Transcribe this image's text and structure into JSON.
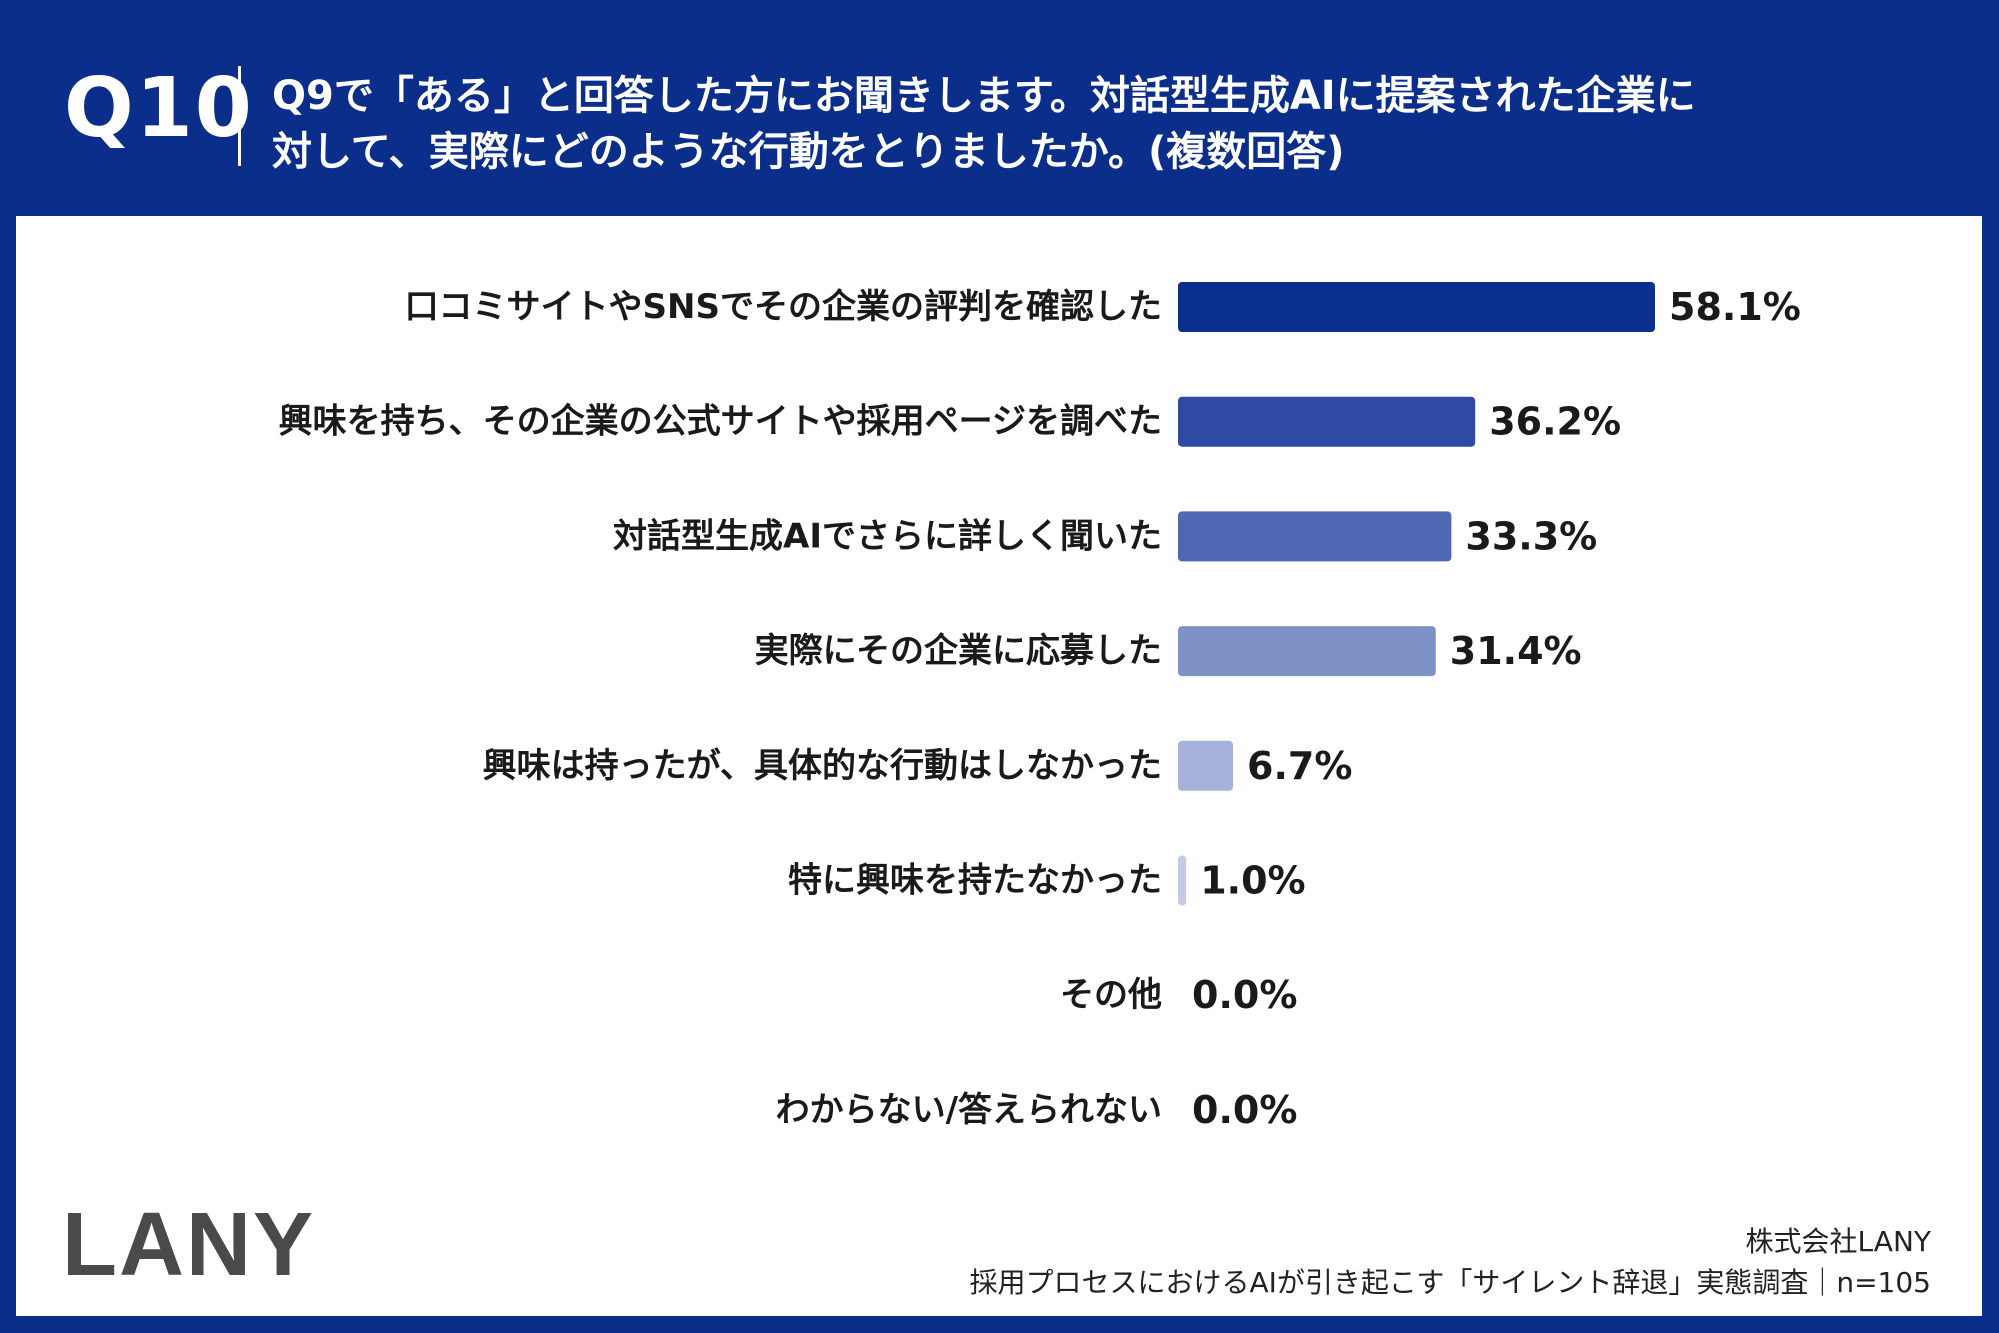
{
  "header": {
    "question_number": "Q10",
    "question_text": "Q9で「ある」と回答した方にお聞きします。対話型生成AIに提案された企業に\n対して、実際にどのような行動をとりましたか。(複数回答)"
  },
  "footer": {
    "logo": "LANY",
    "company": "株式会社LANY",
    "survey": "採用プロセスにおけるAIが引き起こす「サイレント辞退」実態調査｜n=105"
  },
  "colors": {
    "header_bg": "#0a2e8a",
    "bar_1": "#0b2f8f",
    "bar_2": "#2f4aa3",
    "bar_3": "#5068b4",
    "bar_4": "#7f92c8",
    "bar_5": "#a6b2dc",
    "bar_6": "#c2cbe8"
  },
  "chart_data": {
    "type": "bar",
    "orientation": "horizontal",
    "categories": [
      "口コミサイトやSNSでその企業の評判を確認した",
      "興味を持ち、その企業の公式サイトや採用ページを調べた",
      "対話型生成AIでさらに詳しく聞いた",
      "実際にその企業に応募した",
      "興味は持ったが、具体的な行動はしなかった",
      "特に興味を持たなかった",
      "その他",
      "わからない/答えられない"
    ],
    "values": [
      58.1,
      36.2,
      33.3,
      31.4,
      6.7,
      1.0,
      0.0,
      0.0
    ],
    "value_labels": [
      "58.1%",
      "36.2%",
      "33.3%",
      "31.4%",
      "6.7%",
      "1.0%",
      "0.0%",
      "0.0%"
    ],
    "unit": "%",
    "xlim": [
      0,
      100
    ],
    "grid": false,
    "legend": "none"
  }
}
